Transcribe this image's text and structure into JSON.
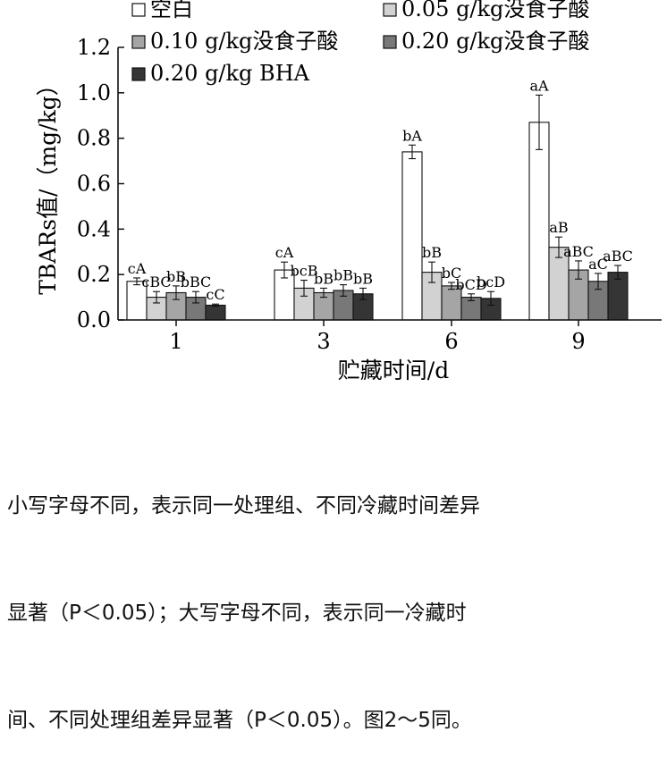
{
  "chart_data": {
    "type": "bar",
    "title": "",
    "xlabel": "贮藏时间/d",
    "ylabel": "TBARs值/（mg/kg）",
    "ylim": [
      0,
      1.2
    ],
    "yticks": [
      "0.0",
      "0.2",
      "0.4",
      "0.6",
      "0.8",
      "1.0",
      "1.2"
    ],
    "ytick_values": [
      0,
      0.2,
      0.4,
      0.6,
      0.8,
      1.0,
      1.2
    ],
    "categories": [
      "1",
      "3",
      "6",
      "9"
    ],
    "legend_position": "top",
    "series": [
      {
        "name": "空白",
        "color": "#ffffff",
        "values": [
          0.17,
          0.22,
          0.74,
          0.87
        ],
        "errors": [
          0.015,
          0.035,
          0.03,
          0.12
        ],
        "labels": [
          "cA",
          "cA",
          "bA",
          "aA"
        ]
      },
      {
        "name": "0.05 g/kg没食子酸",
        "color": "#d2d2d2",
        "values": [
          0.1,
          0.14,
          0.21,
          0.32
        ],
        "errors": [
          0.025,
          0.035,
          0.045,
          0.045
        ],
        "labels": [
          "cBC",
          "bcB",
          "bB",
          "aB"
        ]
      },
      {
        "name": "0.10 g/kg没食子酸",
        "color": "#a5a5a5",
        "values": [
          0.12,
          0.12,
          0.15,
          0.22
        ],
        "errors": [
          0.03,
          0.02,
          0.015,
          0.04
        ],
        "labels": [
          "bB",
          "bB",
          "bC",
          "aBC"
        ]
      },
      {
        "name": "0.20 g/kg没食子酸",
        "color": "#787878",
        "values": [
          0.1,
          0.13,
          0.1,
          0.17
        ],
        "errors": [
          0.025,
          0.025,
          0.015,
          0.035
        ],
        "labels": [
          "bBC",
          "bB",
          "bCD",
          "aC"
        ]
      },
      {
        "name": "0.20 g/kg BHA",
        "color": "#353535",
        "values": [
          0.065,
          0.115,
          0.095,
          0.21
        ],
        "errors": [
          0.005,
          0.025,
          0.03,
          0.03
        ],
        "labels": [
          "cC",
          "bB",
          "bcD",
          "aBC"
        ]
      }
    ]
  },
  "note": {
    "lines": [
      "小写字母不同，表示同一处理组、不同冷藏时间差异",
      "显著（P＜0.05）；大写字母不同，表示同一冷藏时",
      "间、不同处理组差异显著（P＜0.05）。图2～5同。"
    ]
  }
}
